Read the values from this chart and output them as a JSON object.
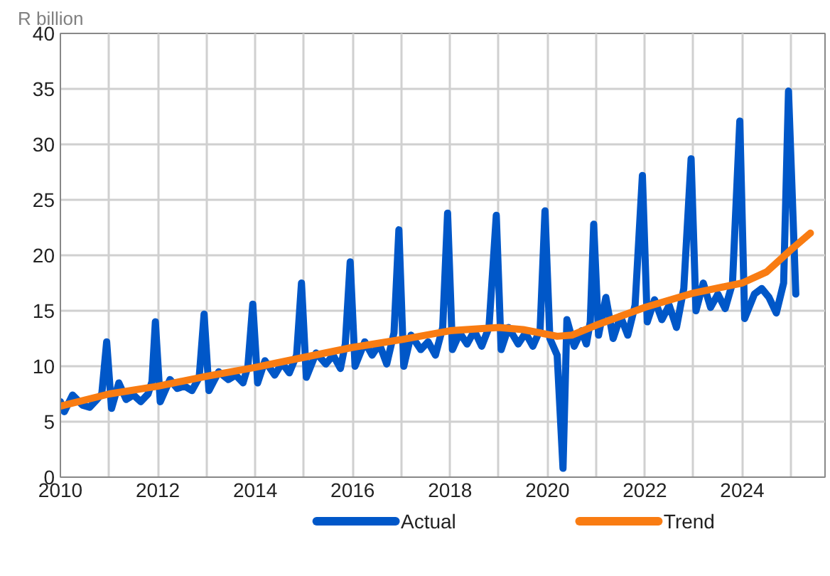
{
  "chart_data": {
    "type": "line",
    "ylabel": "R billion",
    "xlim": [
      2010,
      2025.7
    ],
    "ylim": [
      0,
      40
    ],
    "xticks": [
      2010,
      {
        "value": 2011,
        "label": null
      },
      2012,
      {
        "value": 2013,
        "label": null
      },
      2014,
      {
        "value": 2015,
        "label": null
      },
      2016,
      {
        "value": 2017,
        "label": null
      },
      2018,
      {
        "value": 2019,
        "label": null
      },
      2020,
      {
        "value": 2021,
        "label": null
      },
      2022,
      {
        "value": 2023,
        "label": null
      },
      2024,
      {
        "value": 2025,
        "label": null
      }
    ],
    "yticks": [
      0,
      5,
      10,
      15,
      20,
      25,
      30,
      35,
      40
    ],
    "grid": true,
    "legend": "bottom",
    "marker": "none",
    "line_style": "solid",
    "series": [
      {
        "name": "Actual",
        "color": "#0057c8",
        "x": [
          2010.0,
          2010.08,
          2010.25,
          2010.45,
          2010.6,
          2010.75,
          2010.85,
          2010.95,
          2011.05,
          2011.2,
          2011.35,
          2011.5,
          2011.65,
          2011.8,
          2011.88,
          2011.95,
          2012.05,
          2012.25,
          2012.4,
          2012.55,
          2012.7,
          2012.85,
          2012.95,
          2013.05,
          2013.25,
          2013.45,
          2013.6,
          2013.75,
          2013.85,
          2013.95,
          2014.05,
          2014.2,
          2014.4,
          2014.55,
          2014.7,
          2014.85,
          2014.95,
          2015.05,
          2015.25,
          2015.45,
          2015.6,
          2015.75,
          2015.85,
          2015.95,
          2016.05,
          2016.25,
          2016.4,
          2016.55,
          2016.7,
          2016.85,
          2016.95,
          2017.05,
          2017.2,
          2017.4,
          2017.55,
          2017.7,
          2017.85,
          2017.95,
          2018.05,
          2018.2,
          2018.35,
          2018.5,
          2018.65,
          2018.8,
          2018.95,
          2019.05,
          2019.2,
          2019.4,
          2019.55,
          2019.7,
          2019.85,
          2019.95,
          2020.05,
          2020.2,
          2020.32,
          2020.4,
          2020.55,
          2020.7,
          2020.8,
          2020.88,
          2020.95,
          2021.05,
          2021.2,
          2021.35,
          2021.5,
          2021.65,
          2021.8,
          2021.95,
          2022.05,
          2022.2,
          2022.35,
          2022.5,
          2022.65,
          2022.8,
          2022.95,
          2023.05,
          2023.2,
          2023.35,
          2023.5,
          2023.65,
          2023.8,
          2023.95,
          2024.05,
          2024.25,
          2024.4,
          2024.55,
          2024.7,
          2024.85,
          2024.95,
          2025.1
        ],
        "values": [
          6.8,
          5.9,
          7.4,
          6.5,
          6.3,
          7.0,
          7.5,
          12.2,
          6.2,
          8.5,
          7.0,
          7.4,
          6.8,
          7.5,
          8.6,
          14.0,
          6.8,
          8.8,
          8.0,
          8.2,
          7.8,
          9.0,
          14.7,
          7.8,
          9.5,
          8.8,
          9.2,
          8.5,
          10,
          15.6,
          8.5,
          10.5,
          9.2,
          10.3,
          9.4,
          11,
          17.5,
          9.0,
          11.2,
          10.2,
          11.0,
          9.8,
          12,
          19.4,
          10.0,
          12.2,
          11.0,
          12.0,
          10.2,
          13,
          22.3,
          10.0,
          12.8,
          11.5,
          12.2,
          11.0,
          13.5,
          23.8,
          11.5,
          13.0,
          12.0,
          13.2,
          11.8,
          13.5,
          23.6,
          11.5,
          13.5,
          12.0,
          13.0,
          11.8,
          13.3,
          24.0,
          12.5,
          11.0,
          0.8,
          14.2,
          11.8,
          13.2,
          12.0,
          14,
          22.8,
          12.8,
          16.2,
          12.5,
          14.5,
          12.8,
          15.5,
          27.2,
          14.0,
          16.0,
          14.2,
          15.5,
          13.5,
          17.0,
          28.7,
          15.0,
          17.5,
          15.3,
          16.5,
          15.2,
          17.5,
          32.1,
          14.3,
          16.5,
          17.0,
          16.2,
          14.8,
          17.5,
          34.8,
          16.5
        ]
      },
      {
        "name": "Trend",
        "color": "#f97c12",
        "x": [
          2010,
          2011,
          2012,
          2013,
          2014,
          2015,
          2016,
          2017,
          2018,
          2019,
          2019.5,
          2020.2,
          2020.5,
          2021,
          2022,
          2023,
          2024,
          2024.5,
          2025,
          2025.4
        ],
        "values": [
          6.4,
          7.5,
          8.2,
          9.1,
          9.9,
          10.8,
          11.7,
          12.4,
          13.2,
          13.5,
          13.3,
          12.7,
          12.8,
          13.7,
          15.3,
          16.6,
          17.5,
          18.5,
          20.5,
          22.0
        ]
      }
    ]
  }
}
